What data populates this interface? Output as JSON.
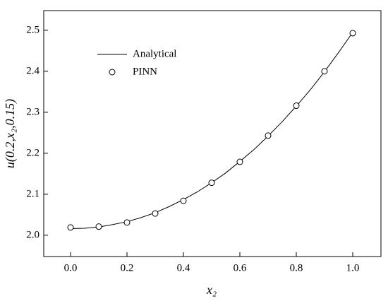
{
  "chart_data": {
    "type": "line",
    "x_label": "x₂",
    "y_label": "u(0.2,x₂,0.15)",
    "xlim": [
      -0.095,
      1.1
    ],
    "ylim": [
      1.948,
      2.548
    ],
    "xticks": [
      {
        "value": 0,
        "label": "0.0"
      },
      0.2,
      0.4,
      0.6,
      0.8,
      {
        "value": 1,
        "label": "1.0"
      }
    ],
    "yticks": [
      {
        "value": 2,
        "label": "2.0"
      },
      2.1,
      2.2,
      2.3,
      2.4,
      2.5
    ],
    "legend": "upper-left",
    "series": [
      {
        "name": "Analytical",
        "mode": "line",
        "color": "#000000",
        "x": [
          0,
          0.05,
          0.1,
          0.15,
          0.2,
          0.25,
          0.3,
          0.35,
          0.4,
          0.45,
          0.5,
          0.55,
          0.6,
          0.65,
          0.7,
          0.75,
          0.8,
          0.85,
          0.9,
          0.95,
          1
        ],
        "values": [
          2.016,
          2.017,
          2.02,
          2.026,
          2.033,
          2.043,
          2.055,
          2.07,
          2.087,
          2.106,
          2.128,
          2.152,
          2.18,
          2.209,
          2.242,
          2.277,
          2.315,
          2.355,
          2.399,
          2.446,
          2.495
        ]
      },
      {
        "name": "PINN",
        "mode": "markers",
        "color": "#000000",
        "x": [
          0,
          0.1,
          0.2,
          0.3,
          0.4,
          0.5,
          0.6,
          0.7,
          0.8,
          0.9,
          1
        ],
        "values": [
          2.019,
          2.021,
          2.031,
          2.053,
          2.084,
          2.128,
          2.179,
          2.243,
          2.316,
          2.4,
          2.493
        ]
      }
    ]
  }
}
